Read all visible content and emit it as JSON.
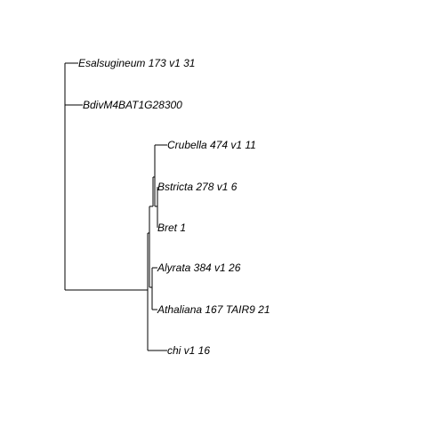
{
  "tree": {
    "type": "phylogram",
    "line_color": "#000000",
    "tips": [
      {
        "label": "Esalsugineum 173 v1 31"
      },
      {
        "label": "BdivM4BAT1G28300"
      },
      {
        "label": "Crubella 474 v1 11"
      },
      {
        "label": "Bstricta 278 v1 6"
      },
      {
        "label": "Bret 1"
      },
      {
        "label": "Alyrata 384 v1 26"
      },
      {
        "label": "Athaliana 167 TAIR9 21"
      },
      {
        "label": "chi v1 16"
      }
    ]
  }
}
